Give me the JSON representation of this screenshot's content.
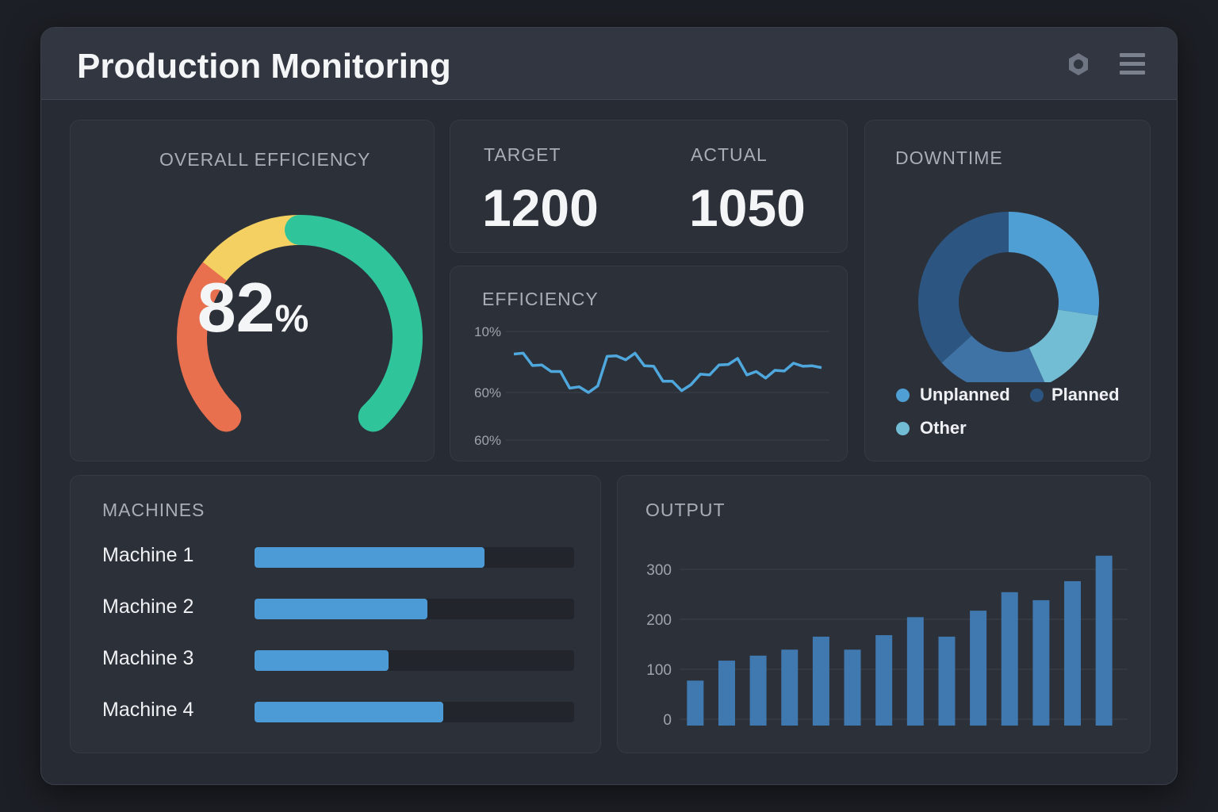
{
  "header": {
    "title": "Production Monitoring",
    "icons": [
      "gear-icon",
      "menu-icon"
    ]
  },
  "overall_efficiency": {
    "label": "OVERALL EFFICIENCY",
    "value": "82",
    "unit": "%",
    "colors": {
      "low": "#e8704f",
      "mid": "#f4cf62",
      "high": "#2fc49a"
    }
  },
  "target": {
    "label": "TARGET",
    "value": "1200"
  },
  "actual": {
    "label": "ACTUAL",
    "value": "1050"
  },
  "efficiency_chart": {
    "label": "EFFICIENCY"
  },
  "downtime": {
    "label": "DOWNTIME",
    "legend": [
      {
        "name": "Unplanned",
        "color": "#4f9fd4"
      },
      {
        "name": "Planned",
        "color": "#2c5681"
      },
      {
        "name": "Other",
        "color": "#72bcd4"
      }
    ]
  },
  "machines": {
    "label": "MACHINES",
    "items": [
      {
        "name": "Machine 1",
        "value": 72
      },
      {
        "name": "Machine 2",
        "value": 54
      },
      {
        "name": "Machine 3",
        "value": 42
      },
      {
        "name": "Machine 4",
        "value": 59
      }
    ]
  },
  "output": {
    "label": "OUTPUT"
  },
  "chart_data": [
    {
      "type": "line",
      "title": "EFFICIENCY",
      "yticks": [
        "10%",
        "60%",
        "60%"
      ],
      "ytick_values": [
        10,
        60,
        60
      ],
      "grid": true,
      "series": [
        {
          "color": "#4fa8dd",
          "values": [
            28.5,
            27.8,
            37.9,
            37.5,
            42.8,
            42.8,
            56.4,
            55.3,
            60,
            54.6,
            30.4,
            30,
            33.2,
            27.8,
            38.1,
            38.5,
            50.8,
            50.8,
            58.5,
            53.6,
            45,
            45.6,
            37.5,
            37,
            32.1,
            45.6,
            42.8,
            48.2,
            41.8,
            42.4,
            36,
            38.5,
            38.1,
            39.6
          ]
        }
      ]
    },
    {
      "type": "pie",
      "title": "DOWNTIME",
      "donut": true,
      "slices": [
        {
          "name": "Unplanned",
          "value": 27.4,
          "color": "#4f9fd4"
        },
        {
          "name": "Other",
          "value": 15.9,
          "color": "#72bcd4"
        },
        {
          "value": 20,
          "color": "#3f73a6"
        },
        {
          "name": "Planned",
          "value": 36.7,
          "color": "#2c5681"
        }
      ]
    },
    {
      "type": "bar",
      "title": "OUTPUT",
      "yticks": [
        0,
        100,
        200,
        300
      ],
      "ylim": [
        0,
        345
      ],
      "grid": true,
      "color": "#4078b0",
      "values": [
        90,
        130,
        140,
        152,
        178,
        152,
        181,
        217,
        178,
        230,
        267,
        251,
        289,
        340
      ]
    }
  ]
}
